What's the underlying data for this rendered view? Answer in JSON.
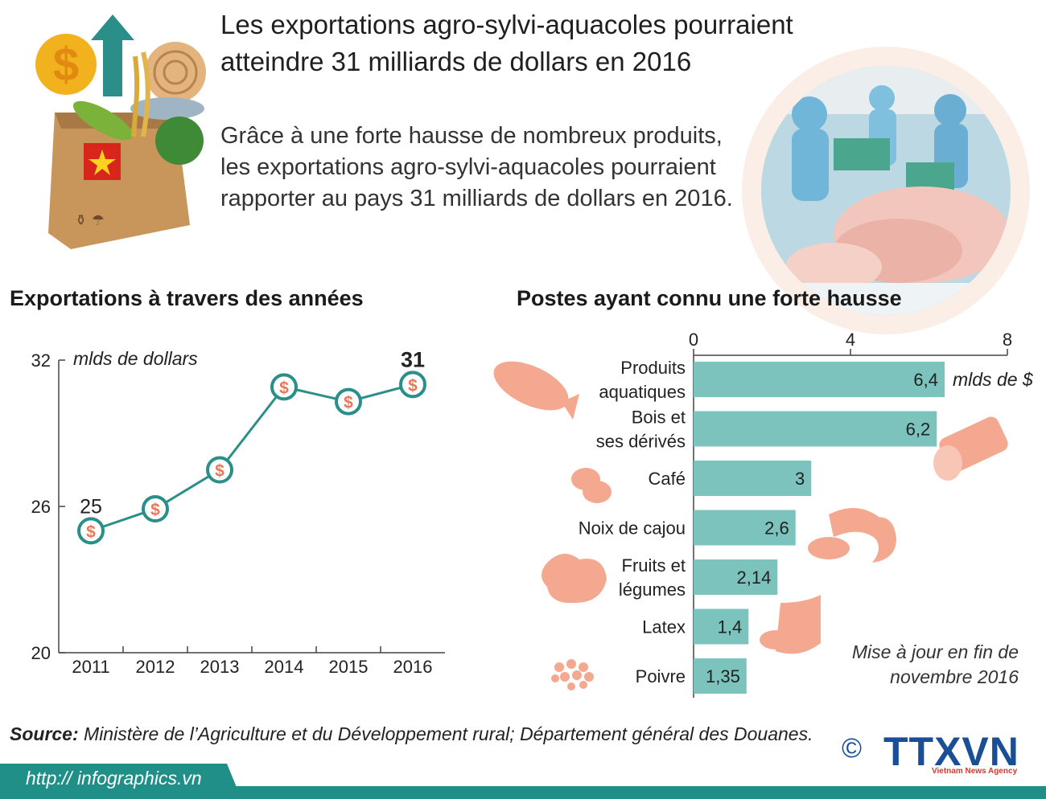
{
  "header": {
    "title": "Les exportations agro-sylvi-aquacoles pourraient atteindre 31 milliards de dollars en 2016",
    "intro": "Grâce à une forte hausse de nombreux produits, les exportations agro-sylvi-aquacoles pourraient rapporter au pays 31 milliards de dollars en 2016."
  },
  "chart_data": [
    {
      "type": "line",
      "title": "Exportations à travers des années",
      "ylabel": "mlds de dollars",
      "x": [
        "2011",
        "2012",
        "2013",
        "2014",
        "2015",
        "2016"
      ],
      "values": [
        25,
        25.9,
        27.5,
        30.9,
        30.3,
        31
      ],
      "ylim": [
        20,
        32
      ],
      "yticks": [
        "20",
        "26",
        "32"
      ],
      "data_labels": [
        {
          "index": 0,
          "text": "25"
        },
        {
          "index": 5,
          "text": "31"
        }
      ],
      "marker": "$",
      "colors": {
        "line": "#2a8f88",
        "marker_fill": "#ffffff",
        "marker_symbol": "#e8785a"
      }
    },
    {
      "type": "bar",
      "orientation": "horizontal",
      "title": "Postes ayant connu une forte hausse",
      "unit_label": "mlds de $",
      "categories": [
        [
          "Produits",
          "aquatiques"
        ],
        [
          "Bois et",
          "ses dérivés"
        ],
        [
          "Café"
        ],
        [
          "Noix de cajou"
        ],
        [
          "Fruits et",
          "légumes"
        ],
        [
          "Latex"
        ],
        [
          "Poivre"
        ]
      ],
      "values": [
        6.4,
        6.2,
        3,
        2.6,
        2.14,
        1.4,
        1.35
      ],
      "value_labels": [
        "6,4",
        "6,2",
        "3",
        "2,6",
        "2,14",
        "1,4",
        "1,35"
      ],
      "xlim": [
        0,
        8
      ],
      "xticks": [
        "0",
        "4",
        "8"
      ],
      "note": "Mise à jour en fin de novembre 2016",
      "colors": {
        "bar": "#7cc3bd",
        "icon": "#f3a88f"
      }
    }
  ],
  "footer": {
    "source_label": "Source:",
    "source_text": " Ministère de l’Agriculture et du Développement rural; Département général des Douanes.",
    "url": "http:// infographics.vn",
    "copyright": "©",
    "logo": "TTXVN",
    "agency": "Vietnam News Agency"
  }
}
